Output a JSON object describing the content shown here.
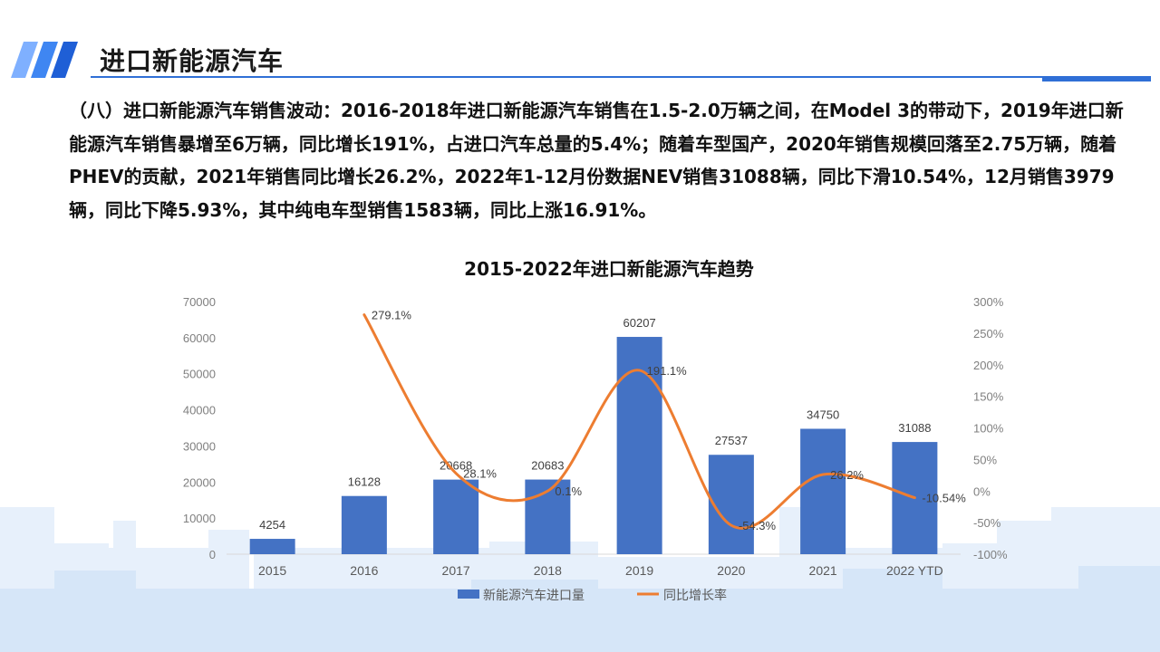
{
  "header": {
    "title": "进口新能源汽车",
    "accent_color": "#1f6fe5"
  },
  "paragraph": "（八）进口新能源汽车销售波动：2016-2018年进口新能源汽车销售在1.5-2.0万辆之间，在Model 3的带动下，2019年进口新能源汽车销售暴增至6万辆，同比增长191%，占进口汽车总量的5.4%；随着车型国产，2020年销售规模回落至2.75万辆，随着PHEV的贡献，2021年销售同比增长26.2%，2022年1-12月份数据NEV销售31088辆，同比下滑10.54%，12月销售3979辆，同比下降5.93%，其中纯电车型销售1583辆，同比上涨16.91%。",
  "chart_data": {
    "type": "bar",
    "title": "2015-2022年进口新能源汽车趋势",
    "categories": [
      "2015",
      "2016",
      "2017",
      "2018",
      "2019",
      "2020",
      "2021",
      "2022 YTD"
    ],
    "series": [
      {
        "name": "新能源汽车进口量",
        "type": "bar",
        "axis": "left",
        "color": "#4472c4",
        "values": [
          4254,
          16128,
          20668,
          20683,
          60207,
          27537,
          34750,
          31088
        ],
        "labels": [
          "4254",
          "16128",
          "20668",
          "20683",
          "60207",
          "27537",
          "34750",
          "31088"
        ]
      },
      {
        "name": "同比增长率",
        "type": "line",
        "axis": "right",
        "color": "#ed7d31",
        "values": [
          null,
          279.1,
          28.1,
          0.1,
          191.1,
          -54.3,
          26.2,
          -10.54
        ],
        "labels": [
          "",
          "279.1%",
          "28.1%",
          "0.1%",
          "191.1%",
          "-54.3%",
          "26.2%",
          "-10.54%"
        ]
      }
    ],
    "ylim_left": [
      0,
      70000
    ],
    "yticks_left": [
      "0",
      "10000",
      "20000",
      "30000",
      "40000",
      "50000",
      "60000",
      "70000"
    ],
    "ylim_right": [
      -100,
      300
    ],
    "yticks_right": [
      "-100%",
      "-50%",
      "0%",
      "50%",
      "100%",
      "150%",
      "200%",
      "250%",
      "300%"
    ],
    "grid": false,
    "legend_position": "bottom"
  }
}
